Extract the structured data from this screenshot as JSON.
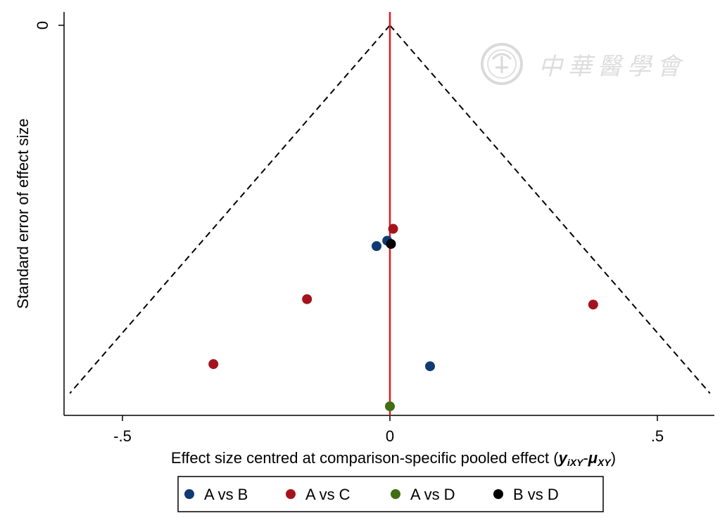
{
  "chart_data": {
    "type": "scatter",
    "subtype": "comparison-adjusted funnel plot",
    "title": "",
    "xlabel_main": "Effect size centred at comparison-specific pooled effect (",
    "xlabel_y": "y",
    "xlabel_y_sub": "iXY",
    "xlabel_dash": "-",
    "xlabel_mu": "μ",
    "xlabel_mu_sub": "XY",
    "xlabel_close": ")",
    "ylabel": "Standard error of effect size",
    "xlim": [
      -0.6,
      0.6
    ],
    "ylim": [
      0,
      0.35
    ],
    "y_reversed": true,
    "xticks": [
      {
        "value": -0.5,
        "label": "-.5"
      },
      {
        "value": 0,
        "label": "0"
      },
      {
        "value": 0.5,
        "label": ".5"
      }
    ],
    "yticks": [
      {
        "value": 0,
        "label": "0"
      }
    ],
    "grid": false,
    "reference_line": {
      "x": 0,
      "color": "#e31a1c"
    },
    "funnel": {
      "apex_x": 0,
      "apex_y": 0,
      "max_se": 0.34,
      "z": 1.76
    },
    "legend_position": "bottom",
    "series": [
      {
        "name": "A vs B",
        "color": "#0f3a73",
        "points": [
          [
            -0.025,
            0.204
          ],
          [
            -0.005,
            0.199
          ],
          [
            0.075,
            0.315
          ]
        ]
      },
      {
        "name": "A vs C",
        "color": "#a5141d",
        "points": [
          [
            0.006,
            0.188
          ],
          [
            -0.155,
            0.253
          ],
          [
            -0.33,
            0.313
          ],
          [
            0.38,
            0.258
          ]
        ]
      },
      {
        "name": "A vs D",
        "color": "#3f6e14",
        "points": [
          [
            0.0,
            0.352
          ]
        ]
      },
      {
        "name": "B vs D",
        "color": "#000000",
        "points": [
          [
            0.002,
            0.202
          ]
        ]
      }
    ]
  },
  "watermark": {
    "text": "中華醫學會",
    "icon": "society-seal-icon",
    "color": "#d9d9d9"
  }
}
